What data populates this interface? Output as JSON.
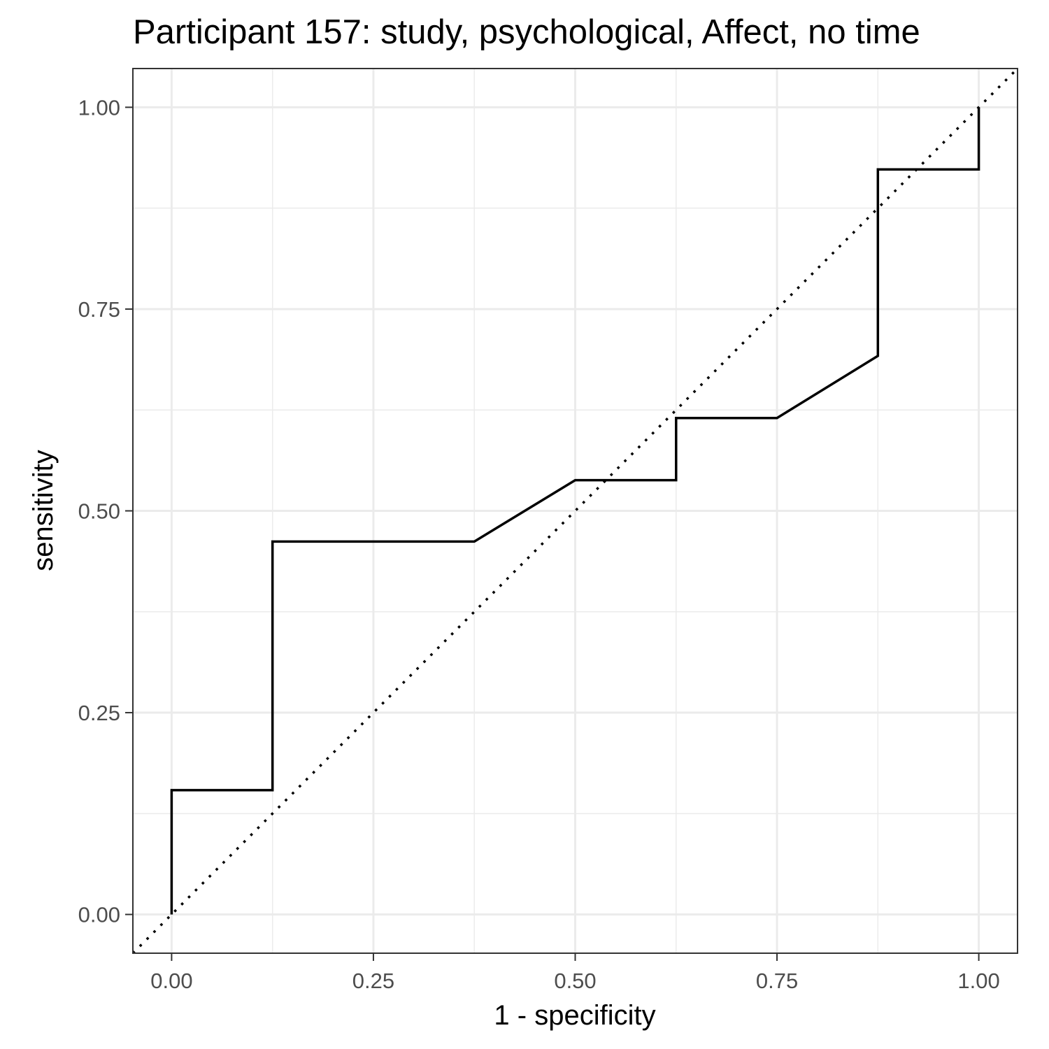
{
  "chart_data": {
    "type": "line",
    "title": "Participant 157: study, psychological, Affect, no time",
    "xlabel": "1 - specificity",
    "ylabel": "sensitivity",
    "xlim": [
      -0.048,
      1.048
    ],
    "ylim": [
      -0.048,
      1.048
    ],
    "xticks": [
      "0.00",
      "0.25",
      "0.50",
      "0.75",
      "1.00"
    ],
    "yticks": [
      "0.00",
      "0.25",
      "0.50",
      "0.75",
      "1.00"
    ],
    "grid": true,
    "series": [
      {
        "line_style": "solid",
        "color": "#000000",
        "x": [
          0.0,
          0.0,
          0.125,
          0.125,
          0.375,
          0.5,
          0.625,
          0.625,
          0.75,
          0.875,
          0.875,
          1.0,
          1.0
        ],
        "y": [
          0.0,
          0.154,
          0.154,
          0.462,
          0.462,
          0.538,
          0.538,
          0.615,
          0.615,
          0.692,
          0.923,
          0.923,
          1.0
        ]
      },
      {
        "line_style": "dotted",
        "color": "#000000",
        "x": [
          -0.048,
          1.048
        ],
        "y": [
          -0.048,
          1.048
        ]
      }
    ]
  }
}
